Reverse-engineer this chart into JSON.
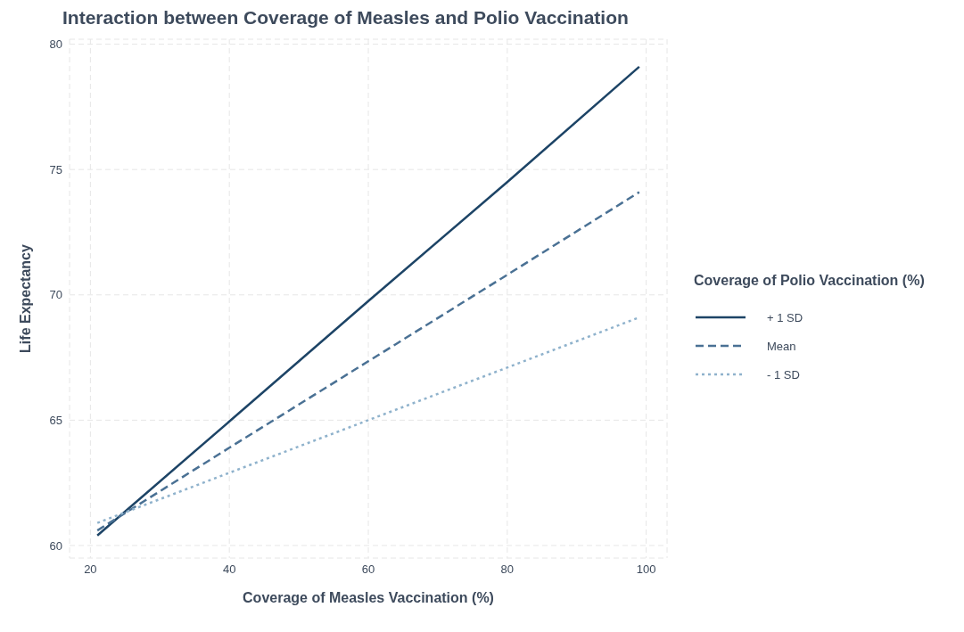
{
  "chart_data": {
    "type": "line",
    "title": "Interaction between Coverage of Measles and Polio Vaccination",
    "xlabel": "Coverage of Measles Vaccination (%)",
    "ylabel": "Life Expectancy",
    "legend_title": "Coverage of Polio Vaccination (%)",
    "legend": "right",
    "grid": true,
    "marker": "none",
    "x": [
      21,
      40,
      60,
      80,
      99
    ],
    "xlim": [
      17,
      103
    ],
    "xticks": [
      20,
      40,
      60,
      80,
      100
    ],
    "ylim": [
      59.5,
      80.2
    ],
    "yticks": [
      60,
      65,
      70,
      75,
      80
    ],
    "series": [
      {
        "name": "+ 1 SD",
        "color": "#1d4466",
        "line_style": "solid",
        "values": [
          60.4,
          64.95,
          69.75,
          74.5,
          79.1
        ]
      },
      {
        "name": "Mean",
        "color": "#4a7194",
        "line_style": "dashed",
        "values": [
          60.6,
          63.9,
          67.35,
          70.8,
          74.1
        ]
      },
      {
        "name": "- 1 SD",
        "color": "#8fb2cc",
        "line_style": "dotted",
        "values": [
          60.9,
          62.9,
          65.0,
          67.1,
          69.1
        ]
      }
    ]
  }
}
